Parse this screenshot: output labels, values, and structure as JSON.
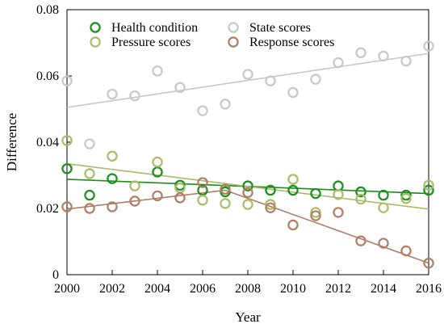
{
  "chart_data": {
    "type": "scatter",
    "xlabel": "Year",
    "ylabel": "Difference",
    "xlim": [
      2000,
      2016
    ],
    "ylim": [
      0,
      0.08
    ],
    "x_ticks": [
      2000,
      2002,
      2004,
      2006,
      2008,
      2010,
      2012,
      2014,
      2016
    ],
    "x_tick_labels": [
      "2000",
      "2002",
      "2004",
      "2006",
      "2008",
      "2010",
      "2012",
      "2014",
      "2016"
    ],
    "y_ticks": [
      0,
      0.02,
      0.04,
      0.06,
      0.08
    ],
    "y_tick_labels": [
      "0",
      "0.02",
      "0.04",
      "0.06",
      "0.08"
    ],
    "grid": false,
    "legend_placement": "top",
    "marker": "open-circle",
    "series": [
      {
        "name": "Health condition",
        "color": "#1a8f1a",
        "trend": [
          [
            2000,
            0.0288
          ],
          [
            2016,
            0.0245
          ]
        ],
        "points": [
          [
            2000,
            0.032
          ],
          [
            2001,
            0.024
          ],
          [
            2002,
            0.029
          ],
          [
            2004,
            0.031
          ],
          [
            2005,
            0.027
          ],
          [
            2006,
            0.0255
          ],
          [
            2007,
            0.025
          ],
          [
            2008,
            0.0268
          ],
          [
            2009,
            0.0255
          ],
          [
            2010,
            0.0255
          ],
          [
            2011,
            0.0245
          ],
          [
            2012,
            0.0268
          ],
          [
            2013,
            0.025
          ],
          [
            2014,
            0.024
          ],
          [
            2015,
            0.024
          ],
          [
            2016,
            0.0255
          ]
        ]
      },
      {
        "name": "Pressure scores",
        "color": "#a9bc6a",
        "trend": [
          [
            2000,
            0.0335
          ],
          [
            2016,
            0.0198
          ]
        ],
        "points": [
          [
            2000,
            0.0405
          ],
          [
            2001,
            0.0305
          ],
          [
            2002,
            0.0358
          ],
          [
            2003,
            0.0268
          ],
          [
            2004,
            0.034
          ],
          [
            2005,
            0.0262
          ],
          [
            2006,
            0.0225
          ],
          [
            2007,
            0.0215
          ],
          [
            2008,
            0.0212
          ],
          [
            2009,
            0.0212
          ],
          [
            2010,
            0.0288
          ],
          [
            2011,
            0.0188
          ],
          [
            2012,
            0.0242
          ],
          [
            2013,
            0.0228
          ],
          [
            2014,
            0.0202
          ],
          [
            2015,
            0.023
          ],
          [
            2016,
            0.027
          ]
        ]
      },
      {
        "name": "State scores",
        "color": "#c8c8c8",
        "trend": [
          [
            2000,
            0.0505
          ],
          [
            2016,
            0.0668
          ]
        ],
        "points": [
          [
            2000,
            0.0585
          ],
          [
            2001,
            0.0395
          ],
          [
            2002,
            0.0545
          ],
          [
            2003,
            0.054
          ],
          [
            2004,
            0.0615
          ],
          [
            2005,
            0.0565
          ],
          [
            2006,
            0.0495
          ],
          [
            2007,
            0.0515
          ],
          [
            2008,
            0.0605
          ],
          [
            2009,
            0.0585
          ],
          [
            2010,
            0.055
          ],
          [
            2011,
            0.059
          ],
          [
            2012,
            0.064
          ],
          [
            2013,
            0.067
          ],
          [
            2014,
            0.066
          ],
          [
            2015,
            0.0645
          ],
          [
            2016,
            0.069
          ]
        ]
      },
      {
        "name": "Response scores",
        "color": "#b07d65",
        "trend_segments": [
          [
            [
              2000,
              0.0198
            ],
            [
              2007,
              0.0255
            ]
          ],
          [
            [
              2007,
              0.0255
            ],
            [
              2016,
              0.0035
            ]
          ]
        ],
        "points": [
          [
            2000,
            0.0205
          ],
          [
            2001,
            0.02
          ],
          [
            2002,
            0.0205
          ],
          [
            2003,
            0.0222
          ],
          [
            2004,
            0.0238
          ],
          [
            2005,
            0.0232
          ],
          [
            2006,
            0.0278
          ],
          [
            2007,
            0.0258
          ],
          [
            2008,
            0.0248
          ],
          [
            2009,
            0.0202
          ],
          [
            2010,
            0.015
          ],
          [
            2011,
            0.0178
          ],
          [
            2012,
            0.0188
          ],
          [
            2013,
            0.0102
          ],
          [
            2014,
            0.0095
          ],
          [
            2015,
            0.0072
          ],
          [
            2016,
            0.0035
          ]
        ]
      }
    ]
  }
}
